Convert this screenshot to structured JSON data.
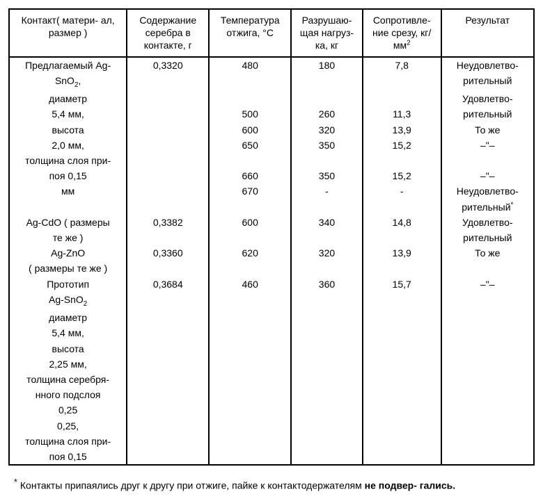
{
  "headers": {
    "c1": "Контакт( матери-\nал, размер )",
    "c2": "Содержание серебра в контакте, г",
    "c3_a": "Температура отжига, ",
    "c3_unit": "°С",
    "c4": "Разрушаю-\nщая нагруз-\nка, кг",
    "c5_a": "Сопротивле-\nние срезу, кг/мм",
    "c5_sup": "2",
    "c6": "Результат"
  },
  "rows": [
    {
      "c1": "Предлагаемый Ag-",
      "c2": "0,3320",
      "c3": "480",
      "c4": "180",
      "c5": "7,8",
      "c6": "Неудовлетво-"
    },
    {
      "c1_html": "SnO<sub>2</sub>,",
      "c2": "",
      "c3": "",
      "c4": "",
      "c5": "",
      "c6": "рительный"
    },
    {
      "c1": "диаметр",
      "c2": "",
      "c3": "",
      "c4": "",
      "c5": "",
      "c6": "Удовлетво-"
    },
    {
      "c1": "5,4 мм,",
      "c2": "",
      "c3": "500",
      "c4": "260",
      "c5": "11,3",
      "c6": "рительный"
    },
    {
      "c1": "высота",
      "c2": "",
      "c3": "600",
      "c4": "320",
      "c5": "13,9",
      "c6": "То же"
    },
    {
      "c1": "2,0 мм,",
      "c2": "",
      "c3": "650",
      "c4": "350",
      "c5": "15,2",
      "c6": "–\"–"
    },
    {
      "c1": "толщина слоя при-",
      "c2": "",
      "c3": "",
      "c4": "",
      "c5": "",
      "c6": ""
    },
    {
      "c1": "поя 0,15",
      "c2": "",
      "c3": "660",
      "c4": "350",
      "c5": "15,2",
      "c6": "–\"–"
    },
    {
      "c1": "мм",
      "c2": "",
      "c3": "670",
      "c4": "-",
      "c5": "-",
      "c6": "Неудовлетво-"
    },
    {
      "c1": "",
      "c2": "",
      "c3": "",
      "c4": "",
      "c5": "",
      "c6_html": "рительный<sup>*</sup>"
    },
    {
      "c1": "Ag-CdO ( размеры",
      "c2": "0,3382",
      "c3": "600",
      "c4": "340",
      "c5": "14,8",
      "c6": "Удовлетво-"
    },
    {
      "c1": "те же )",
      "c2": "",
      "c3": "",
      "c4": "",
      "c5": "",
      "c6": "рительный"
    },
    {
      "c1": "Ag-ZnO",
      "c2": "0,3360",
      "c3": "620",
      "c4": "320",
      "c5": "13,9",
      "c6": "То же"
    },
    {
      "c1": "( размеры те же )",
      "c2": "",
      "c3": "",
      "c4": "",
      "c5": "",
      "c6": ""
    },
    {
      "c1": "Прототип",
      "c2": "0,3684",
      "c3": "460",
      "c4": "360",
      "c5": "15,7",
      "c6": "–\"–"
    },
    {
      "c1_html": "Ag-SnO<sub>2</sub>",
      "c2": "",
      "c3": "",
      "c4": "",
      "c5": "",
      "c6": ""
    },
    {
      "c1": "диаметр",
      "c2": "",
      "c3": "",
      "c4": "",
      "c5": "",
      "c6": ""
    },
    {
      "c1": "5,4 мм,",
      "c2": "",
      "c3": "",
      "c4": "",
      "c5": "",
      "c6": ""
    },
    {
      "c1": "высота",
      "c2": "",
      "c3": "",
      "c4": "",
      "c5": "",
      "c6": ""
    },
    {
      "c1": "2,25 мм,",
      "c2": "",
      "c3": "",
      "c4": "",
      "c5": "",
      "c6": ""
    },
    {
      "c1": "толщина серебря-",
      "c2": "",
      "c3": "",
      "c4": "",
      "c5": "",
      "c6": ""
    },
    {
      "c1": "нного подслоя",
      "c2": "",
      "c3": "",
      "c4": "",
      "c5": "",
      "c6": ""
    },
    {
      "c1": "0,25",
      "c2": "",
      "c3": "",
      "c4": "",
      "c5": "",
      "c6": ""
    },
    {
      "c1": "0,25,",
      "c2": "",
      "c3": "",
      "c4": "",
      "c5": "",
      "c6": ""
    },
    {
      "c1": "толщина слоя при-",
      "c2": "",
      "c3": "",
      "c4": "",
      "c5": "",
      "c6": ""
    },
    {
      "c1": "поя 0,15",
      "c2": "",
      "c3": "",
      "c4": "",
      "c5": "",
      "c6": "",
      "last": true
    }
  ],
  "footnote": {
    "text_a": "Контакты припаялись друг к другу при отжиге, пайке к контактодержателям ",
    "text_b": "не подвер-\nгались.",
    "star": "*"
  }
}
